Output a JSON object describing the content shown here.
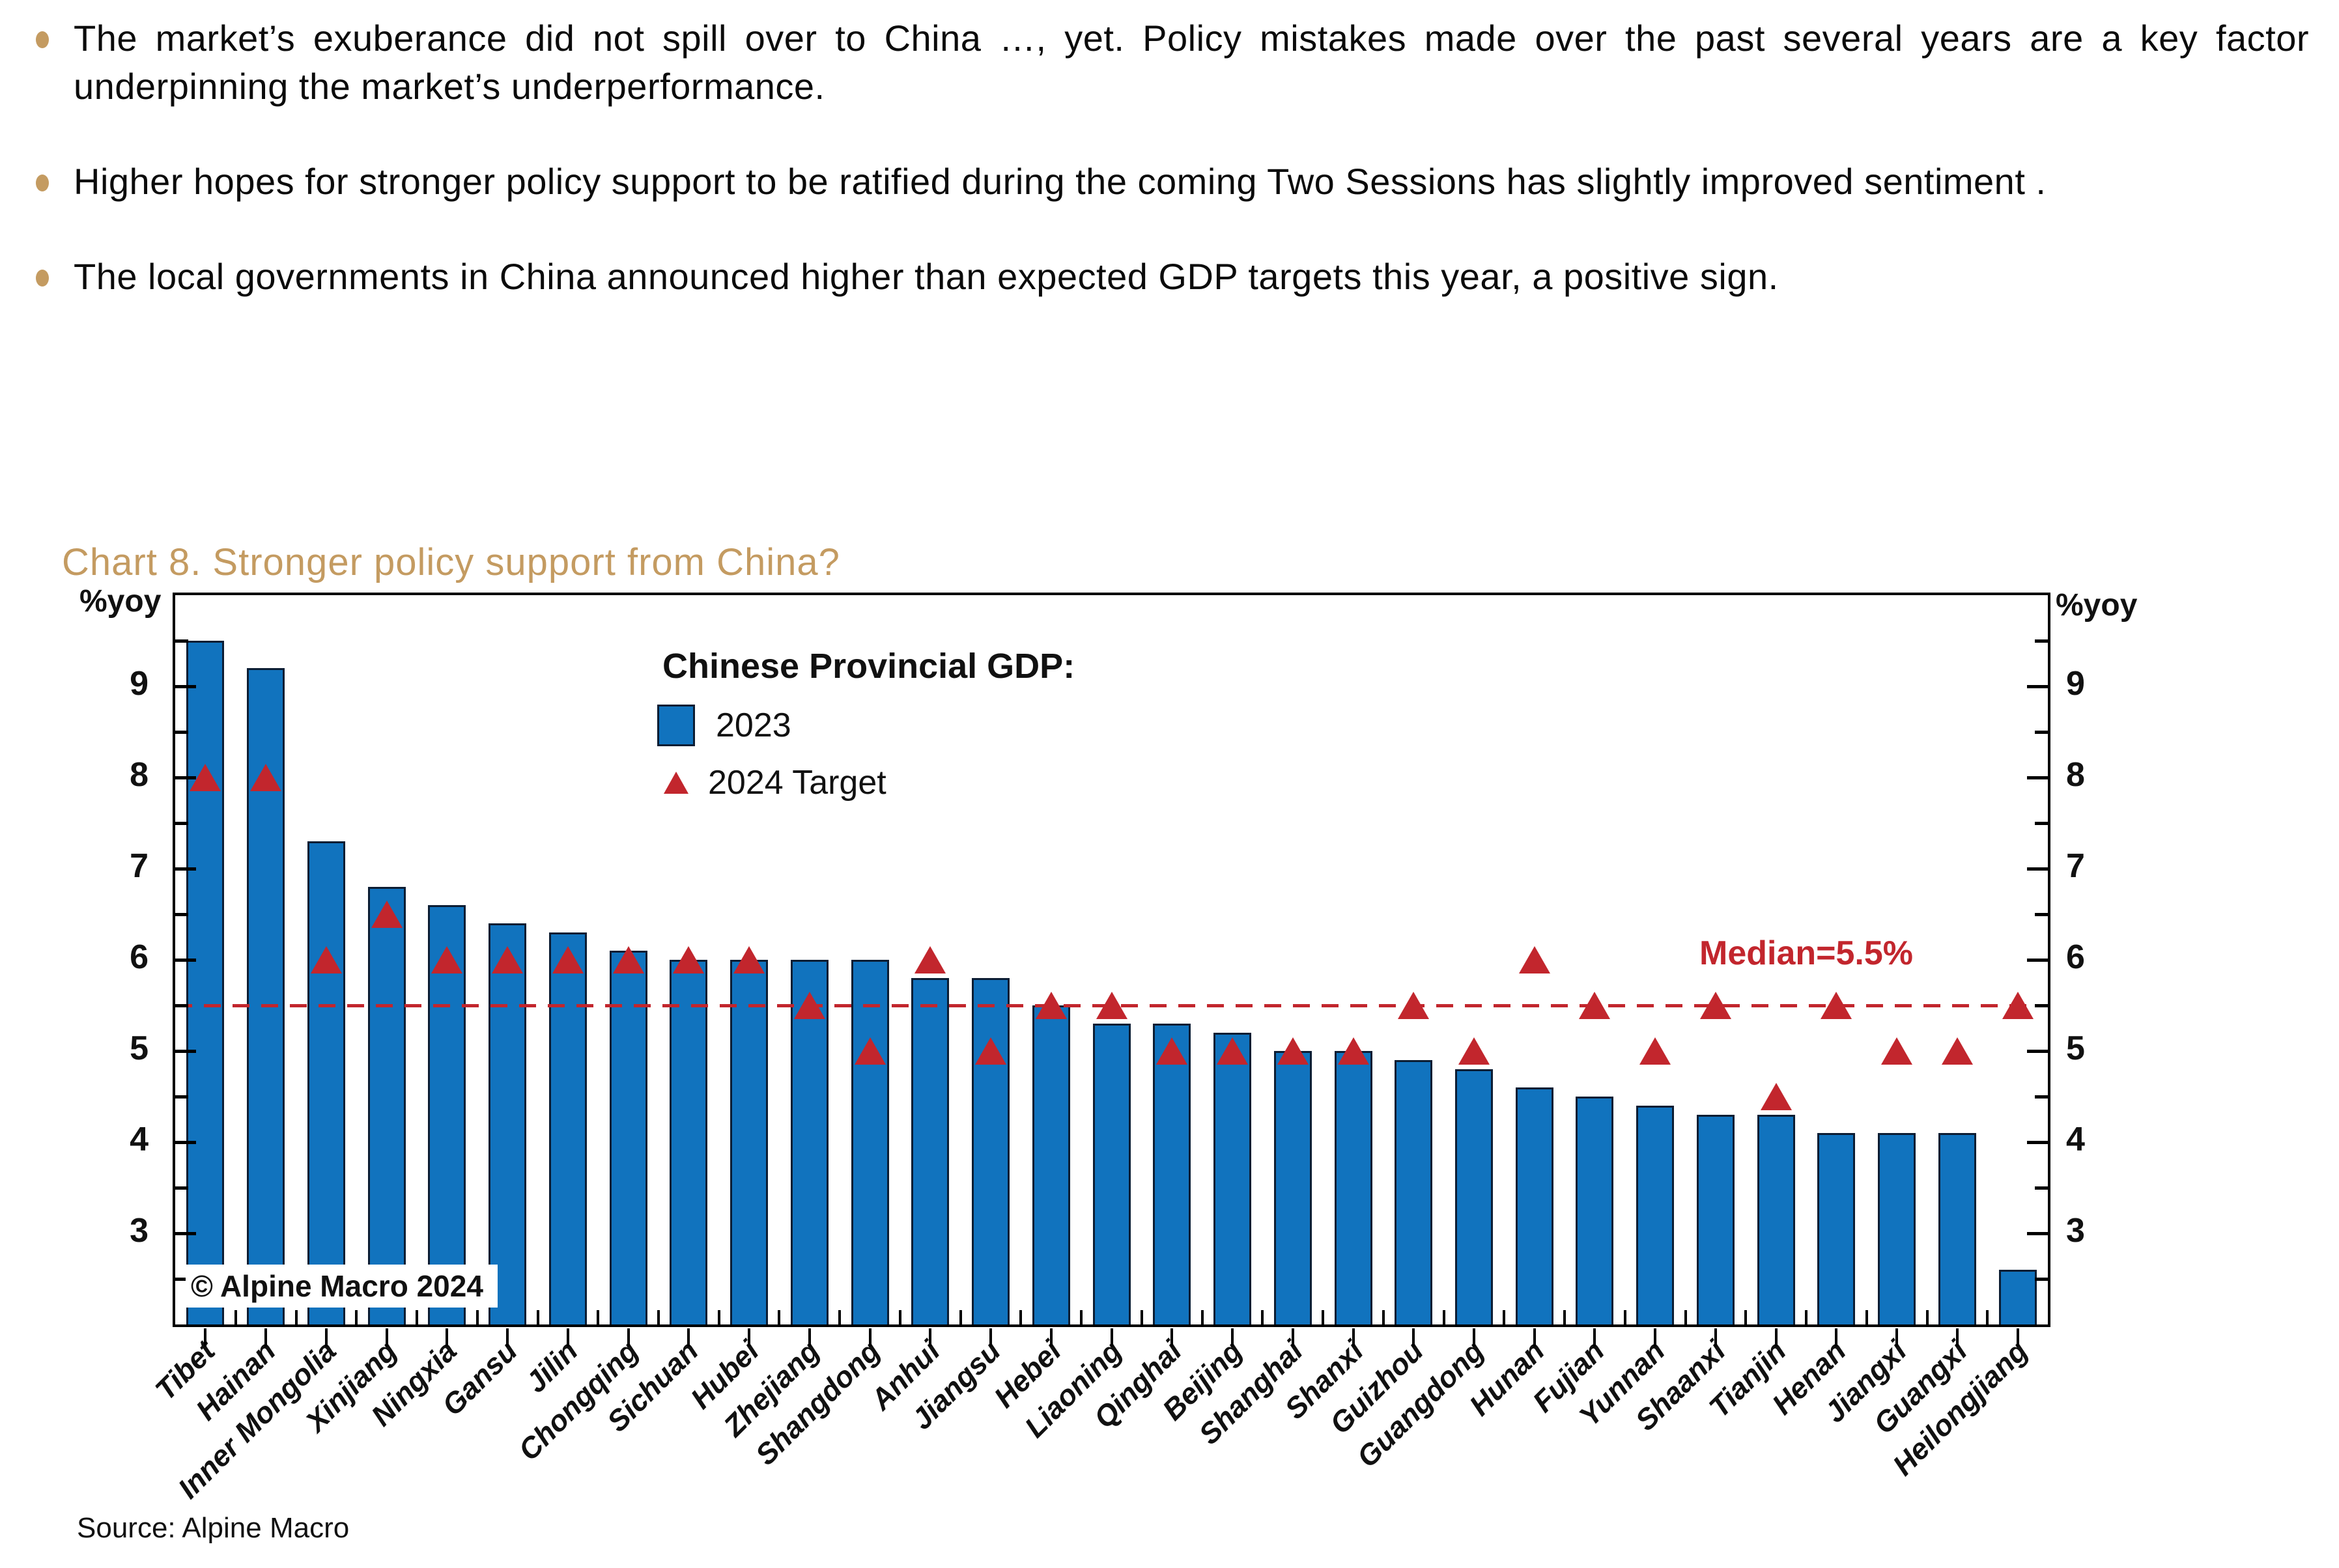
{
  "accent_gold": "#C49B61",
  "bullets": {
    "items": [
      {
        "text": "The market’s exuberance did not spill over to China …, yet. Policy mistakes made over the past several years are a key factor underpinning the market’s underperformance."
      },
      {
        "text": "Higher hopes for stronger policy support to be ratified during the coming Two Sessions has slightly improved sentiment ."
      },
      {
        "text": "The local governments in China announced higher than expected GDP targets this year, a positive sign."
      }
    ]
  },
  "chart": {
    "title": "Chart 8. Stronger policy support from China?",
    "axis_unit_label_left": "%yoy",
    "axis_unit_label_right": "%yoy",
    "legend": {
      "header": "Chinese Provincial GDP:",
      "series1_label": "2023",
      "series2_label": "2024 Target"
    },
    "median_label": "Median=5.5%",
    "watermark": "© Alpine Macro 2024",
    "colors": {
      "bar": "#1173BE",
      "bar_outline": "#0C1D33",
      "target_red": "#C2262D",
      "median_red": "#C2262D",
      "title_gold": "#C49B61",
      "bullet_gold": "#C49B61"
    }
  },
  "chart_data": {
    "type": "bar",
    "title": "Chinese Provincial GDP:",
    "ylabel": "%yoy",
    "ylim": [
      2,
      10
    ],
    "yticks": [
      3,
      4,
      5,
      6,
      7,
      8,
      9
    ],
    "grid": false,
    "legend_position": "upper-center-left",
    "median": 5.5,
    "median_label": "Median=5.5%",
    "categories": [
      "Tibet",
      "Hainan",
      "Inner Mongolia",
      "Xinjiang",
      "Ningxia",
      "Gansu",
      "Jilin",
      "Chongqing",
      "Sichuan",
      "Hubei",
      "Zhejiang",
      "Shangdong",
      "Anhui",
      "Jiangsu",
      "Hebei",
      "Liaoning",
      "Qinghai",
      "Beijing",
      "Shanghai",
      "Shanxi",
      "Guizhou",
      "Guangdong",
      "Hunan",
      "Fujian",
      "Yunnan",
      "Shaanxi",
      "Tianjin",
      "Henan",
      "Jiangxi",
      "Guangxi",
      "Heilongjiang"
    ],
    "series": [
      {
        "name": "2023",
        "type": "bar",
        "values": [
          9.5,
          9.2,
          7.3,
          6.8,
          6.6,
          6.4,
          6.3,
          6.1,
          6.0,
          6.0,
          6.0,
          6.0,
          5.8,
          5.8,
          5.5,
          5.3,
          5.3,
          5.2,
          5.0,
          5.0,
          4.9,
          4.8,
          4.6,
          4.5,
          4.4,
          4.3,
          4.3,
          4.1,
          4.1,
          4.1,
          2.6
        ]
      },
      {
        "name": "2024 Target",
        "type": "scatter",
        "values": [
          8.0,
          8.0,
          6.0,
          6.5,
          6.0,
          6.0,
          6.0,
          6.0,
          6.0,
          6.0,
          5.5,
          5.0,
          6.0,
          5.0,
          5.5,
          5.5,
          5.0,
          5.0,
          5.0,
          5.0,
          5.5,
          5.0,
          6.0,
          5.5,
          5.0,
          5.5,
          4.5,
          5.5,
          5.0,
          5.0,
          5.5
        ]
      }
    ]
  },
  "source": "Source: Alpine Macro"
}
